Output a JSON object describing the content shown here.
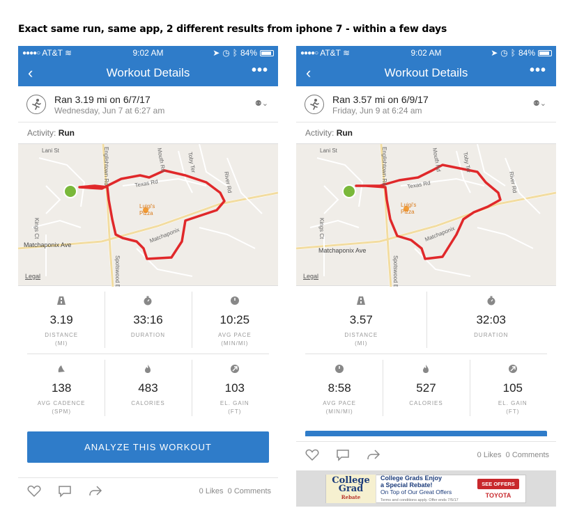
{
  "caption": "Exact same run, same app, 2 different results from iphone 7 - within a few days",
  "phones": [
    {
      "status": {
        "carrier": "AT&T",
        "time": "9:02 AM",
        "battery": "84%"
      },
      "nav_title": "Workout Details",
      "run_title": "Ran 3.19 mi on 6/7/17",
      "run_sub": "Wednesday, Jun 7 at 6:27 am",
      "activity_label": "Activity:",
      "activity_value": "Run",
      "map": {
        "roads": [
          "Lani St",
          "Englishtown Rd",
          "Texas Rd",
          "Luigi's Pizza",
          "Matchaponix Ave",
          "Kings Ct",
          "Toby Ter",
          "River Rd",
          "Spotswood Englishtown",
          "Mouth Rd"
        ],
        "legal": "Legal"
      },
      "stats": [
        {
          "icon": "road-icon",
          "value": "3.19",
          "label": "DISTANCE\n(MI)"
        },
        {
          "icon": "stopwatch-icon",
          "value": "33:16",
          "label": "DURATION"
        },
        {
          "icon": "pace-icon",
          "value": "10:25",
          "label": "AVG PACE\n(MIN/MI)"
        },
        {
          "icon": "cadence-icon",
          "value": "138",
          "label": "AVG CADENCE\n(SPM)"
        },
        {
          "icon": "flame-icon",
          "value": "483",
          "label": "CALORIES"
        },
        {
          "icon": "elevation-icon",
          "value": "103",
          "label": "EL. GAIN\n(FT)"
        }
      ],
      "analyze": "ANALYZE THIS WORKOUT",
      "likes": "0 Likes",
      "comments": "0 Comments"
    },
    {
      "status": {
        "carrier": "AT&T",
        "time": "9:02 AM",
        "battery": "84%"
      },
      "nav_title": "Workout Details",
      "run_title": "Ran 3.57 mi on 6/9/17",
      "run_sub": "Friday, Jun 9 at 6:24 am",
      "activity_label": "Activity:",
      "activity_value": "Run",
      "map": {
        "roads": [
          "Lani St",
          "Englishtown Rd",
          "Texas Rd",
          "Luigi's Pizza",
          "Matchaponix Ave",
          "Kings Ct",
          "Toby Ter",
          "River Rd",
          "Spotswood Englishtown",
          "Mouth Rd"
        ],
        "legal": "Legal"
      },
      "stats": [
        {
          "icon": "road-icon",
          "value": "3.57",
          "label": "DISTANCE\n(MI)"
        },
        {
          "icon": "stopwatch-icon",
          "value": "32:03",
          "label": "DURATION"
        },
        {
          "icon": "pace-icon",
          "value": "8:58",
          "label": "AVG PACE\n(MIN/MI)"
        },
        {
          "icon": "flame-icon",
          "value": "527",
          "label": "CALORIES"
        },
        {
          "icon": "elevation-icon",
          "value": "105",
          "label": "EL. GAIN\n(FT)"
        }
      ],
      "likes": "0 Likes",
      "comments": "0 Comments",
      "ad": {
        "logo_line1": "College",
        "logo_line2": "Grad",
        "logo_line3": "Rebate",
        "headline1": "College Grads Enjoy",
        "headline2": "a Special Rebate!",
        "subline": "On Top of Our Great Offers",
        "fineprint": "Terms and conditions apply. Offer ends 7/5/17",
        "button": "SEE OFFERS",
        "brand": "TOYOTA",
        "brand_tag": "Let's Go Places"
      }
    }
  ],
  "colors": {
    "brand_blue": "#2f7cc9",
    "route_red": "#e0282a",
    "start_green": "#7ab83a"
  }
}
